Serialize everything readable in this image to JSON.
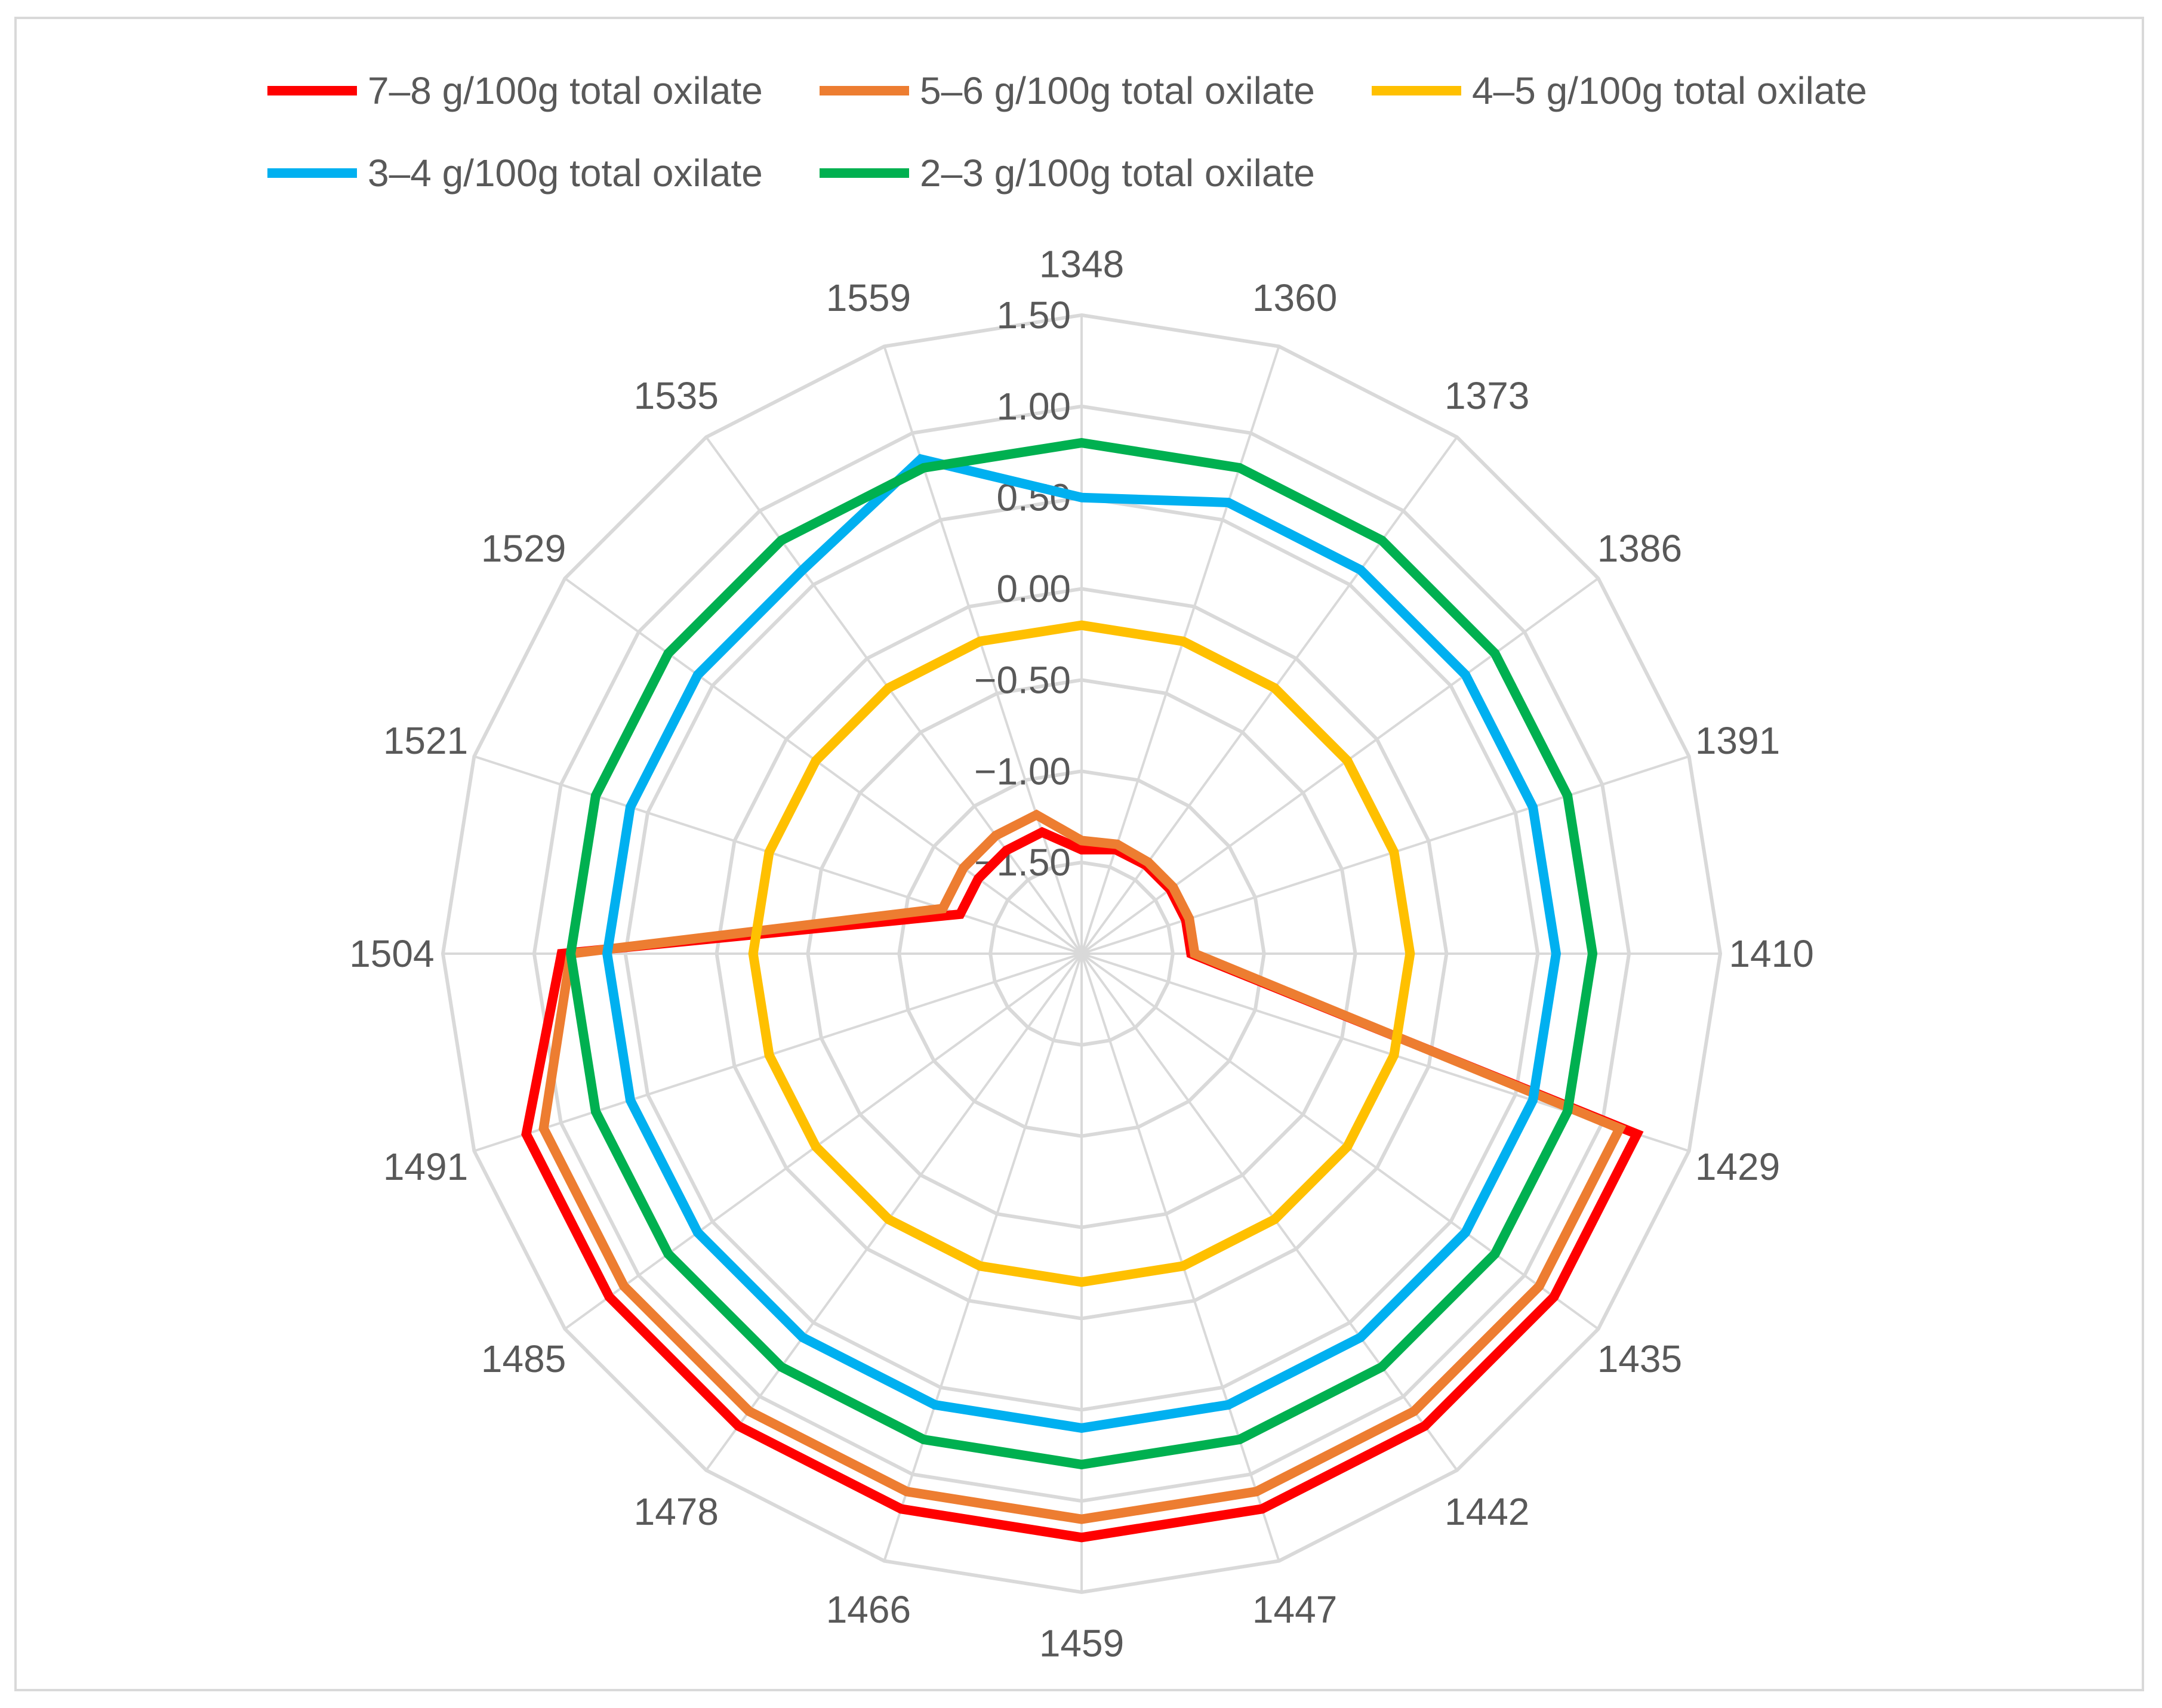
{
  "chart_data": {
    "type": "radar",
    "title": "",
    "categories": [
      "1348",
      "1360",
      "1373",
      "1386",
      "1391",
      "1410",
      "1429",
      "1435",
      "1442",
      "1447",
      "1459",
      "1466",
      "1478",
      "1485",
      "1491",
      "1504",
      "1521",
      "1529",
      "1535",
      "1559"
    ],
    "ticks": [
      -1.5,
      -1.0,
      -0.5,
      0.0,
      0.5,
      1.0,
      1.5
    ],
    "tick_labels": [
      "−1.50",
      "−1.00",
      "−0.50",
      "0.00",
      "0.50",
      "1.00",
      "1.50"
    ],
    "ylim": [
      -2.0,
      1.5
    ],
    "grid": true,
    "legend_position": "top",
    "series": [
      {
        "name": "7–8 g/100g total oxilate",
        "color": "#ff0000",
        "values": [
          -1.43,
          -1.4,
          -1.4,
          -1.4,
          -1.4,
          -1.4,
          1.2,
          1.2,
          1.2,
          1.2,
          1.2,
          1.2,
          1.2,
          1.2,
          1.2,
          0.85,
          -1.3,
          -1.3,
          -1.3,
          -1.3
        ]
      },
      {
        "name": "5–6 g/100g total oxilate",
        "color": "#ed7d31",
        "values": [
          -1.38,
          -1.37,
          -1.38,
          -1.38,
          -1.38,
          -1.38,
          1.1,
          1.1,
          1.1,
          1.1,
          1.1,
          1.1,
          1.1,
          1.1,
          1.1,
          0.8,
          -1.2,
          -1.2,
          -1.2,
          -1.2
        ]
      },
      {
        "name": "4–5 g/100g total oxilate",
        "color": "#ffc000",
        "values": [
          -0.2,
          -0.2,
          -0.2,
          -0.2,
          -0.2,
          -0.2,
          -0.2,
          -0.2,
          -0.2,
          -0.2,
          -0.2,
          -0.2,
          -0.2,
          -0.2,
          -0.2,
          -0.2,
          -0.2,
          -0.2,
          -0.2,
          -0.2
        ]
      },
      {
        "name": "3–4 g/100g total oxilate",
        "color": "#00b0f0",
        "values": [
          0.5,
          0.6,
          0.6,
          0.6,
          0.6,
          0.6,
          0.6,
          0.6,
          0.6,
          0.6,
          0.6,
          0.6,
          0.6,
          0.6,
          0.6,
          0.6,
          0.6,
          0.6,
          0.6,
          0.85
        ]
      },
      {
        "name": "2–3 g/100g total oxilate",
        "color": "#00b050",
        "values": [
          0.8,
          0.8,
          0.8,
          0.8,
          0.8,
          0.8,
          0.8,
          0.8,
          0.8,
          0.8,
          0.8,
          0.8,
          0.8,
          0.8,
          0.8,
          0.8,
          0.8,
          0.8,
          0.8,
          0.8
        ]
      }
    ]
  }
}
